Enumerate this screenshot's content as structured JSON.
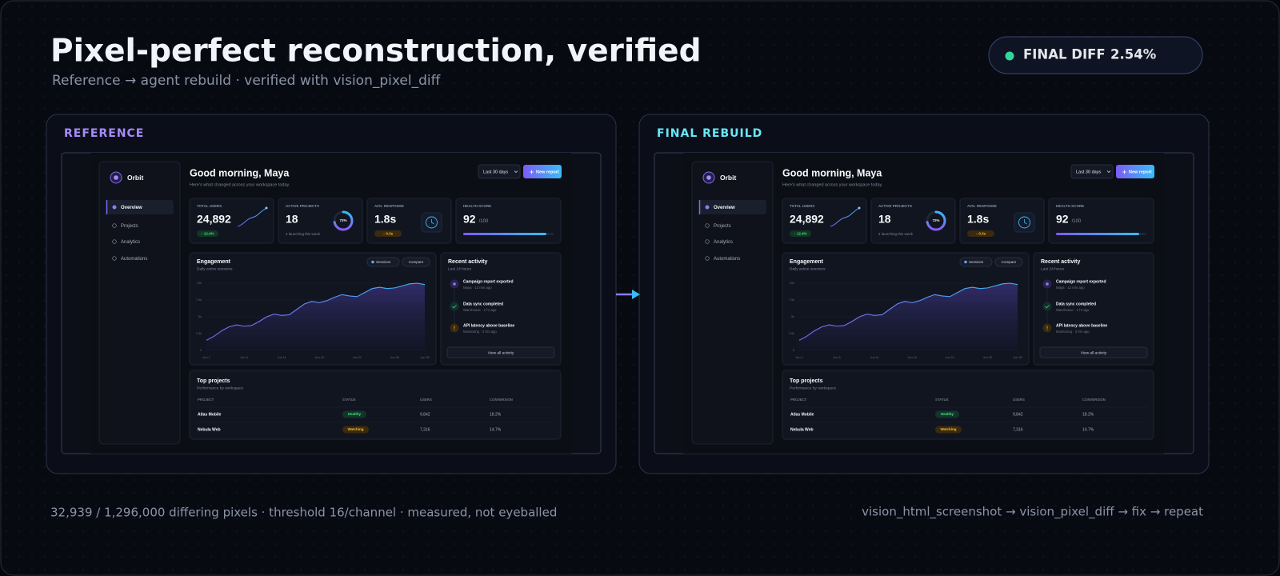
{
  "header": {
    "title": "Pixel-perfect reconstruction, verified",
    "subtitle": "Reference → agent rebuild · verified with vision_pixel_diff",
    "badge_label": "FINAL DIFF",
    "badge_value": "2.54%"
  },
  "panels": [
    {
      "label": "REFERENCE"
    },
    {
      "label": "FINAL REBUILD"
    }
  ],
  "dashboard": {
    "sidebar": {
      "brand": "Orbit",
      "nav": [
        "Overview",
        "Projects",
        "Analytics",
        "Automations"
      ]
    },
    "greeting": "Good morning, Maya",
    "intro": "Here's what changed across your workspace today.",
    "range": "Last 30 days",
    "new_report": "New report",
    "kpis": [
      {
        "label": "TOTAL USERS",
        "value": "24,892",
        "note": "↑ 12.4%"
      },
      {
        "label": "ACTIVE PROJECTS",
        "value": "18",
        "note": "4 launching this week",
        "ring": {
          "value": 72,
          "label": "72%"
        }
      },
      {
        "label": "AVG. RESPONSE",
        "value": "1.8s",
        "note": "↓ 0.3s"
      },
      {
        "label": "HEALTH SCORE",
        "value": 92,
        "max": {
          "value": 100,
          "label": "/100"
        }
      }
    ],
    "compare": "Compare",
    "activity": {
      "title": "Recent activity",
      "subtitle": "Last 24 hours",
      "items": [
        {
          "title": "Campaign report exported",
          "meta": "Maya · 12 min ago"
        },
        {
          "title": "Data sync completed",
          "meta": "Warehouse · 1 hr ago"
        },
        {
          "title": "API latency above baseline",
          "meta": "Monitoring · 3 hrs ago"
        }
      ],
      "button": "View all activity"
    },
    "projects": {
      "title": "Top projects",
      "subtitle": "Performance by workspace",
      "columns": [
        "PROJECT",
        "STATUS",
        "USERS",
        "CONVERSION"
      ],
      "rows": [
        [
          "Atlas Mobile",
          "Healthy",
          "9,842",
          "18.2%"
        ],
        [
          "Nebula Web",
          "Watching",
          "7,316",
          "14.7%"
        ]
      ]
    }
  },
  "chart_data": {
    "type": "line",
    "title": "Engagement",
    "subtitle": "Daily active sessions",
    "x": [
      1,
      2,
      3,
      4,
      5,
      6,
      7,
      8,
      9,
      10,
      11,
      12,
      13,
      14,
      15,
      16,
      17,
      18,
      19,
      20,
      21,
      22,
      23,
      24,
      25,
      26,
      27,
      28,
      29,
      30
    ],
    "xlim": [
      1,
      30
    ],
    "xticks": [
      {
        "value": 1,
        "label": "Jun 1"
      },
      {
        "value": 6,
        "label": "Jun 6"
      },
      {
        "value": 11,
        "label": "Jun 11"
      },
      {
        "value": 16,
        "label": "Jun 16"
      },
      {
        "value": 21,
        "label": "Jun 21"
      },
      {
        "value": 26,
        "label": "Jun 26"
      },
      {
        "value": 30,
        "label": "Jun 30"
      }
    ],
    "ylim": [
      0,
      10000
    ],
    "yticks": [
      0,
      {
        "value": 2500,
        "label": "2.5k"
      },
      {
        "value": 5000,
        "label": "5k"
      },
      {
        "value": 7500,
        "label": "7.5k"
      },
      {
        "value": 10000,
        "label": "10k"
      }
    ],
    "grid": true,
    "series": [
      {
        "name": "Sessions",
        "color": "#60a5fa",
        "values": [
          1500,
          2100,
          2900,
          3500,
          3800,
          3600,
          3700,
          4300,
          5000,
          5400,
          5200,
          5300,
          6100,
          6900,
          7300,
          7100,
          7400,
          7900,
          8300,
          8100,
          8000,
          8600,
          9200,
          9400,
          9200,
          9300,
          9600,
          9900,
          10000,
          9800
        ]
      }
    ]
  },
  "footer": {
    "stats": "32,939 / 1,296,000 differing pixels · threshold 16/channel · measured, not eyeballed",
    "pipeline": "vision_html_screenshot  →  vision_pixel_diff  →  fix  →  repeat"
  }
}
